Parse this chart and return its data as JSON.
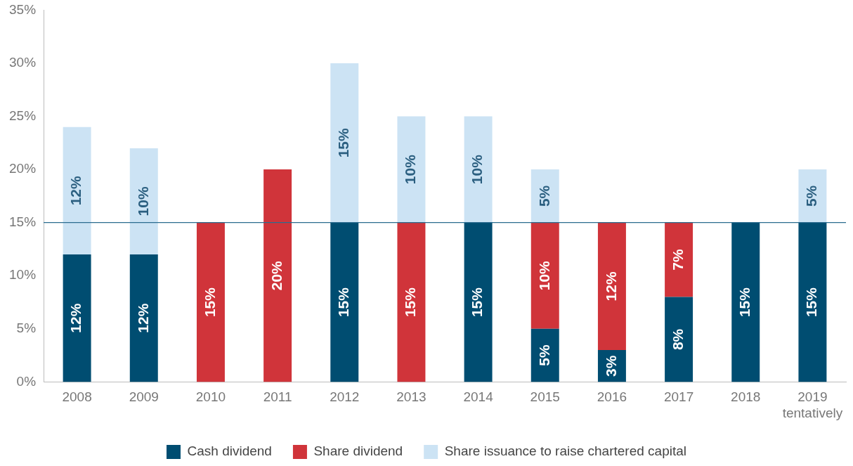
{
  "chart_data": {
    "type": "bar",
    "stacked": true,
    "categories": [
      "2008",
      "2009",
      "2010",
      "2011",
      "2012",
      "2013",
      "2014",
      "2015",
      "2016",
      "2017",
      "2018",
      "2019\ntentatively"
    ],
    "series": [
      {
        "name": "Cash dividend",
        "color": "#004d71",
        "values": [
          12,
          12,
          null,
          null,
          15,
          null,
          15,
          5,
          3,
          8,
          15,
          15
        ],
        "value_labels": [
          "12%",
          "12%",
          null,
          null,
          "15%",
          null,
          "15%",
          "5%",
          "3%",
          "8%",
          "15%",
          "15%"
        ]
      },
      {
        "name": "Share dividend",
        "color": "#d0343a",
        "values": [
          null,
          null,
          15,
          20,
          null,
          15,
          null,
          10,
          12,
          7,
          null,
          null
        ],
        "value_labels": [
          null,
          null,
          "15%",
          "20%",
          null,
          "15%",
          null,
          "10%",
          "12%",
          "7%",
          null,
          null
        ]
      },
      {
        "name": "Share issuance to raise chartered capital",
        "color": "#cce3f4",
        "values": [
          12,
          10,
          null,
          null,
          15,
          10,
          10,
          5,
          null,
          null,
          null,
          5
        ],
        "value_labels": [
          "12%",
          "10%",
          null,
          null,
          "15%",
          "10%",
          "10%",
          "5%",
          null,
          null,
          null,
          "5%"
        ]
      }
    ],
    "ylim": [
      0,
      35
    ],
    "yticks": [
      {
        "value": 0,
        "label": "0%"
      },
      {
        "value": 5,
        "label": "5%"
      },
      {
        "value": 10,
        "label": "10%"
      },
      {
        "value": 15,
        "label": "15%"
      },
      {
        "value": 20,
        "label": "20%"
      },
      {
        "value": 25,
        "label": "25%"
      },
      {
        "value": 30,
        "label": "30%"
      },
      {
        "value": 35,
        "label": "35%"
      }
    ],
    "ref_lines": [
      {
        "axis": "y",
        "value": 15,
        "color": "#2b6c8f"
      }
    ],
    "grid": false,
    "legend": "bottom"
  }
}
